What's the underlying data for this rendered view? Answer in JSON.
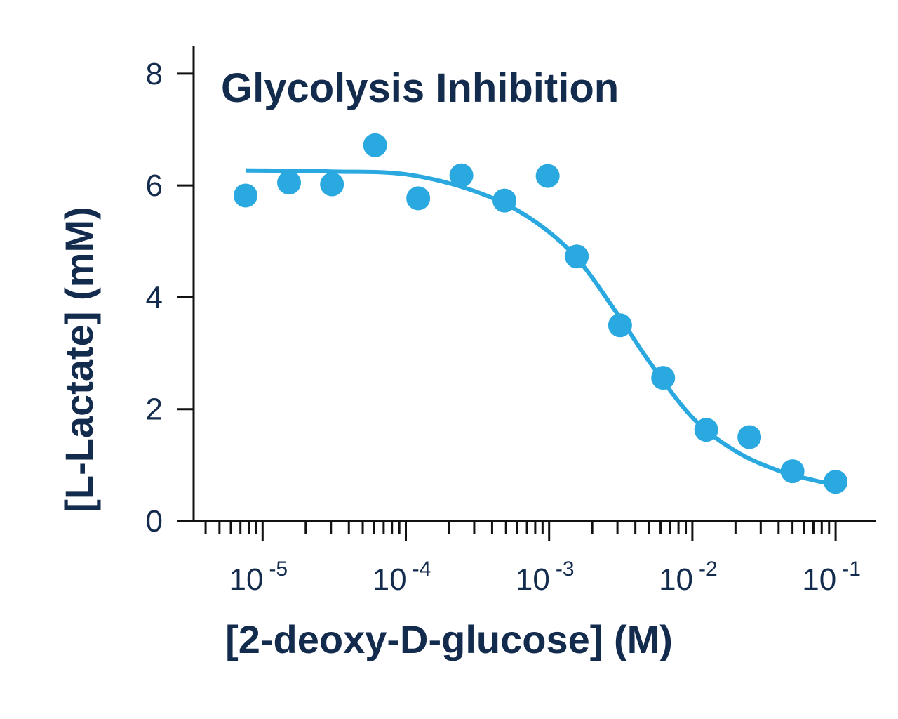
{
  "chart_data": {
    "type": "scatter",
    "title": "Glycolysis Inhibition",
    "xlabel": "[2-deoxy-D-glucose] (M)",
    "ylabel": "[L-Lactate] (mM)",
    "xscale": "log",
    "xlim": [
      3.3e-06,
      0.19
    ],
    "ylim": [
      0,
      8.5
    ],
    "grid": false,
    "y_ticks": [
      {
        "value": 0,
        "label": "0"
      },
      {
        "value": 2,
        "label": "2"
      },
      {
        "value": 4,
        "label": "4"
      },
      {
        "value": 6,
        "label": "6"
      },
      {
        "value": 8,
        "label": "8"
      }
    ],
    "x_ticks": [
      {
        "value": 1e-05,
        "base": "10",
        "exp": "-5"
      },
      {
        "value": 0.0001,
        "base": "10",
        "exp": "-4"
      },
      {
        "value": 0.001,
        "base": "10",
        "exp": "-3"
      },
      {
        "value": 0.01,
        "base": "10",
        "exp": "-2"
      },
      {
        "value": 0.1,
        "base": "10",
        "exp": "-1"
      }
    ],
    "series": [
      {
        "kind": "points",
        "color": "#2aa8e0",
        "x": [
          7.6e-06,
          1.53e-05,
          3.05e-05,
          6.1e-05,
          0.000122,
          0.000244,
          0.000488,
          0.000977,
          0.00156,
          0.00313,
          0.00625,
          0.0125,
          0.025,
          0.05,
          0.1
        ],
        "y": [
          5.82,
          6.05,
          6.02,
          6.72,
          5.77,
          6.18,
          5.73,
          6.17,
          4.73,
          3.5,
          2.56,
          1.63,
          1.5,
          0.89,
          0.7
        ]
      },
      {
        "kind": "fit",
        "color": "#2aa8e0",
        "x": [
          7.6e-06,
          3e-05,
          0.0001,
          0.0003,
          0.0007,
          0.0015,
          0.003,
          0.005,
          0.01,
          0.02,
          0.04,
          0.07,
          0.1
        ],
        "y": [
          6.27,
          6.25,
          6.2,
          5.9,
          5.45,
          4.75,
          3.7,
          2.85,
          1.85,
          1.25,
          0.9,
          0.73,
          0.65
        ]
      }
    ]
  }
}
